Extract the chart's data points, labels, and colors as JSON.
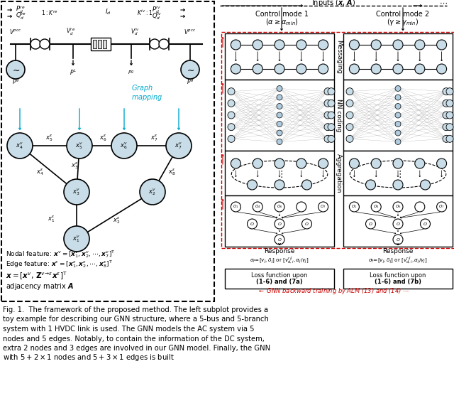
{
  "bg": "#ffffff",
  "node_fill": "#c8dde8",
  "border": "#000000",
  "red": "#cc0000",
  "cyan": "#00aacc",
  "caption": [
    "Fig. 1.  The framework of the proposed method. The left subplot provides a",
    "toy example for describing our GNN structure, where a 5-bus and 5-branch",
    "system with 1 HVDC link is used. The GNN models the AC system via 5",
    "nodes and 5 edges. Notably, to contain the information of the DC system,",
    "extra 2 nodes and 3 edges are involved in our GNN model. Finally, the GNN",
    "with $5 + 2 \\times 1$ nodes and $5 + 3 \\times 1$ edges is built"
  ]
}
